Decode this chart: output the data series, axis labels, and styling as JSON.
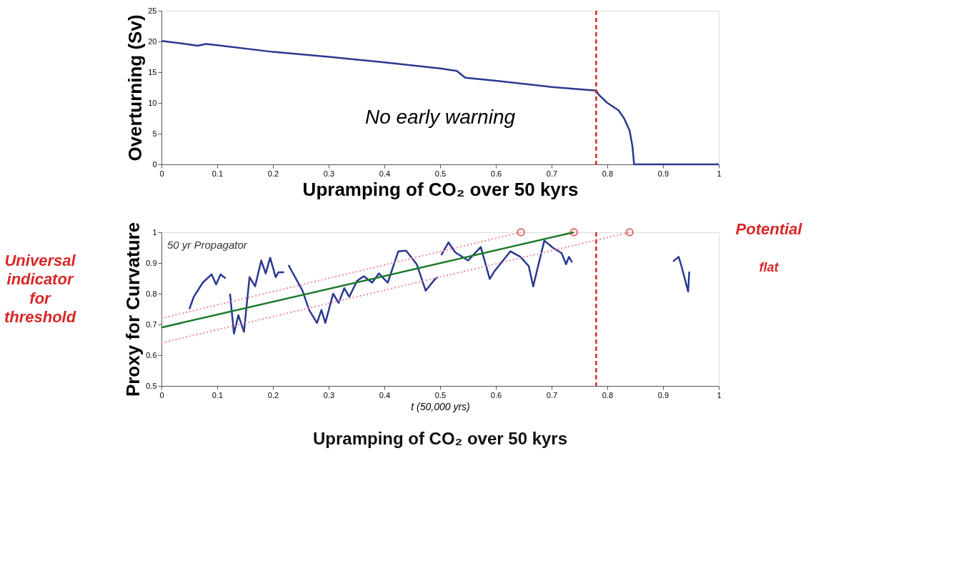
{
  "chart_data": [
    {
      "type": "line",
      "ylabel": "Overturning (Sv)",
      "xlabel": "Upramping of CO₂ over 50 kyrs",
      "xlim": [
        0,
        1
      ],
      "ylim": [
        0,
        25
      ],
      "xticks": [
        0,
        0.1,
        0.2,
        0.3,
        0.4,
        0.5,
        0.6,
        0.7,
        0.8,
        0.9,
        1
      ],
      "yticks": [
        0,
        5,
        10,
        15,
        20,
        25
      ],
      "grid": false,
      "series": [
        {
          "color": "#2b3990",
          "x": [
            0,
            0.05,
            0.065,
            0.08,
            0.1,
            0.2,
            0.3,
            0.4,
            0.5,
            0.53,
            0.545,
            0.6,
            0.7,
            0.78,
            0.785,
            0.8,
            0.82,
            0.83,
            0.84,
            0.845,
            0.848,
            0.9,
            1
          ],
          "values": [
            20.1,
            19.5,
            19.3,
            19.6,
            19.4,
            18.3,
            17.5,
            16.6,
            15.6,
            15.2,
            14.1,
            13.6,
            12.6,
            12.0,
            11.3,
            10.0,
            8.8,
            7.5,
            5.5,
            3.0,
            0,
            0,
            0
          ]
        }
      ],
      "ref_lines": [
        {
          "axis": "x",
          "value": 0.78,
          "color": "#d62828",
          "line_style": "dashed"
        }
      ],
      "annotations": [
        "No early warning"
      ]
    },
    {
      "type": "line",
      "ylabel": "Proxy for Curvature",
      "xlabel": "t (50,000 yrs)",
      "xlim": [
        0,
        1
      ],
      "ylim": [
        0.5,
        1
      ],
      "xticks": [
        0,
        0.1,
        0.2,
        0.3,
        0.4,
        0.5,
        0.6,
        0.7,
        0.8,
        0.9,
        1
      ],
      "yticks": [
        0.5,
        0.6,
        0.7,
        0.8,
        0.9,
        1
      ],
      "grid": false,
      "series": [
        {
          "color": "#2b3990",
          "x": [
            0.05,
            0.058,
            0.074,
            0.09,
            0.098,
            0.106,
            0.115,
            0.119,
            0.123,
            0.13,
            0.138,
            0.148,
            0.158,
            0.168,
            0.179,
            0.187,
            0.195,
            0.205,
            0.21,
            0.22,
            0.224,
            0.228,
            0.253,
            0.265,
            0.279,
            0.287,
            0.294,
            0.308,
            0.318,
            0.328,
            0.337,
            0.351,
            0.363,
            0.378,
            0.39,
            0.406,
            0.425,
            0.439,
            0.458,
            0.474,
            0.491,
            0.496,
            0.499,
            0.502,
            0.515,
            0.527,
            0.55,
            0.573,
            0.589,
            0.597,
            0.626,
            0.644,
            0.659,
            0.667,
            0.675,
            0.687,
            0.702,
            0.718,
            0.726,
            0.731,
            0.737,
            0.8,
            0.918,
            0.928,
            0.933,
            0.945,
            0.947
          ],
          "values": [
            0.75,
            0.79,
            0.836,
            0.863,
            0.83,
            0.863,
            0.85,
            null,
            0.8,
            0.67,
            0.73,
            0.676,
            0.854,
            0.824,
            0.908,
            0.866,
            0.917,
            0.854,
            0.87,
            0.87,
            null,
            0.893,
            0.81,
            0.747,
            0.705,
            0.747,
            0.705,
            0.8,
            0.77,
            0.818,
            0.79,
            0.842,
            0.857,
            0.836,
            0.866,
            0.836,
            0.938,
            0.94,
            0.896,
            0.81,
            0.848,
            0.854,
            null,
            0.926,
            0.967,
            0.935,
            0.908,
            0.952,
            0.848,
            0.872,
            0.938,
            0.92,
            0.89,
            0.824,
            0.884,
            0.973,
            0.95,
            0.932,
            0.896,
            0.92,
            0.902,
            null,
            0.905,
            0.92,
            0.89,
            0.807,
            0.872
          ]
        },
        {
          "color": "#f08a9a",
          "type": "line",
          "line_style": "dotted",
          "x": [
            0,
            0.645
          ],
          "values": [
            0.72,
            1.0
          ]
        },
        {
          "color": "#f08a9a",
          "type": "line",
          "line_style": "dotted",
          "x": [
            0,
            0.84
          ],
          "values": [
            0.64,
            1.0
          ]
        },
        {
          "color": "#1a7a2a",
          "type": "line",
          "line_style": "solid",
          "x": [
            0,
            0.74
          ],
          "values": [
            0.69,
            1.0
          ]
        },
        {
          "color": "#d62828",
          "type": "scatter",
          "marker": "circle",
          "x": [
            0.645,
            0.74,
            0.84
          ],
          "values": [
            1.0,
            1.0,
            1.0
          ]
        }
      ],
      "ref_lines": [
        {
          "axis": "x",
          "value": 0.78,
          "color": "#d62828",
          "line_style": "dashed"
        }
      ],
      "annotations": [
        "Upramping of CO₂ over 50 kyrs",
        "50 yr Propagator",
        "Universal indicator for threshold",
        "Potential",
        "flat"
      ]
    }
  ]
}
